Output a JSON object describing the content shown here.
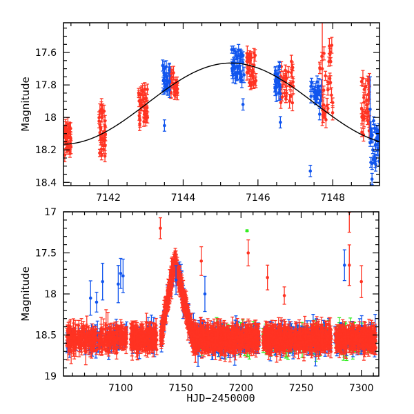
{
  "colors": {
    "red": "#ff3322",
    "blue": "#1155ee",
    "green": "#33ee22",
    "model": "#000000"
  },
  "chart_data": [
    {
      "type": "scatter",
      "panel": "top",
      "title": "",
      "xlabel": "",
      "ylabel": "Magnitude",
      "xlim": [
        7140.8,
        7149.25
      ],
      "ylim": [
        18.42,
        17.417
      ],
      "y_inverted": true,
      "x_ticks": [
        7142,
        7144,
        7146,
        7148
      ],
      "x_tick_labels": [
        "7142",
        "7144",
        "7146",
        "7148"
      ],
      "x_minor_step": 0.5,
      "y_ticks": [
        17.6,
        17.8,
        18,
        18.2,
        18.4
      ],
      "y_tick_labels": [
        "17.6",
        "17.8",
        "18",
        "18.2",
        "18.4"
      ],
      "y_minor_step": 0.05,
      "model_curve": {
        "type": "sinusoid",
        "mean_mag": 17.915,
        "amplitude": 0.25,
        "t_max_brightness": 7145.28,
        "period_days": 9.0
      },
      "series": [
        {
          "name": "red",
          "clusters": [
            {
              "t": [
                7140.8,
                7141.0
              ],
              "mag": [
                18.02,
                18.26
              ],
              "n": 30
            },
            {
              "t": [
                7141.75,
                7141.95
              ],
              "mag": [
                17.92,
                18.24
              ],
              "n": 30
            },
            {
              "t": [
                7142.75,
                7143.05
              ],
              "mag": [
                17.82,
                18.05
              ],
              "n": 30
            },
            {
              "t": [
                7143.65,
                7143.85
              ],
              "mag": [
                17.72,
                17.88
              ],
              "n": 25
            },
            {
              "t": [
                7145.7,
                7145.95
              ],
              "mag": [
                17.6,
                17.82
              ],
              "n": 28
            },
            {
              "t": [
                7146.6,
                7146.95
              ],
              "mag": [
                17.65,
                17.92
              ],
              "n": 28
            },
            {
              "t": [
                7147.65,
                7148.0
              ],
              "mag": [
                17.55,
                18.02
              ],
              "n": 28
            },
            {
              "t": [
                7148.75,
                7149.0
              ],
              "mag": [
                17.75,
                18.12
              ],
              "n": 30
            }
          ]
        },
        {
          "name": "blue",
          "clusters": [
            {
              "t": [
                7143.45,
                7143.65
              ],
              "mag": [
                17.68,
                17.86
              ],
              "n": 22
            },
            {
              "t": [
                7145.3,
                7145.65
              ],
              "mag": [
                17.58,
                17.78
              ],
              "n": 35
            },
            {
              "t": [
                7146.45,
                7146.6
              ],
              "mag": [
                17.68,
                17.86
              ],
              "n": 22
            },
            {
              "t": [
                7147.4,
                7147.7
              ],
              "mag": [
                17.78,
                17.92
              ],
              "n": 22
            },
            {
              "t": [
                7149.0,
                7149.25
              ],
              "mag": [
                18.0,
                18.3
              ],
              "n": 30
            }
          ],
          "outliers": [
            {
              "t": 7143.5,
              "mag": 18.05
            },
            {
              "t": 7145.6,
              "mag": 17.92
            },
            {
              "t": 7146.6,
              "mag": 18.03
            },
            {
              "t": 7147.4,
              "mag": 18.33
            },
            {
              "t": 7147.65,
              "mag": 17.98
            },
            {
              "t": 7149.05,
              "mag": 18.38
            }
          ]
        }
      ]
    },
    {
      "type": "scatter",
      "panel": "bottom",
      "title": "",
      "xlabel": "HJD−2450000",
      "ylabel": "Magnitude",
      "xlim": [
        7052.5,
        7314.5
      ],
      "ylim": [
        19,
        17
      ],
      "y_inverted": true,
      "x_ticks": [
        7100,
        7150,
        7200,
        7250,
        7300
      ],
      "x_tick_labels": [
        "7100",
        "7150",
        "7200",
        "7250",
        "7300"
      ],
      "x_minor_step": 10,
      "y_ticks": [
        17,
        17.5,
        18,
        18.5,
        19
      ],
      "y_tick_labels": [
        "17",
        "17.5",
        "18",
        "18.5",
        "19"
      ],
      "y_minor_step": 0.1,
      "baseline_mag": 18.55,
      "outburst": {
        "t_peak": 7145,
        "peak_mag": 17.6,
        "rise_start": 7133,
        "decay_end": 7160
      },
      "segments": [
        {
          "t": [
            7055,
            7105
          ],
          "red": 260,
          "blue": 70,
          "green": 0
        },
        {
          "t": [
            7108,
            7130
          ],
          "red": 200,
          "blue": 40,
          "green": 0
        },
        {
          "t": [
            7133,
            7160
          ],
          "red": 320,
          "blue": 60,
          "green": 0
        },
        {
          "t": [
            7160,
            7185
          ],
          "red": 260,
          "blue": 90,
          "green": 20
        },
        {
          "t": [
            7185,
            7215
          ],
          "red": 240,
          "blue": 120,
          "green": 50
        },
        {
          "t": [
            7218,
            7245
          ],
          "red": 220,
          "blue": 80,
          "green": 50
        },
        {
          "t": [
            7245,
            7275
          ],
          "red": 240,
          "blue": 80,
          "green": 50
        },
        {
          "t": [
            7278,
            7312
          ],
          "red": 240,
          "blue": 80,
          "green": 60
        }
      ],
      "bright_outliers": {
        "blue": [
          {
            "t": 7075,
            "mag": 18.05
          },
          {
            "t": 7080,
            "mag": 18.1
          },
          {
            "t": 7085,
            "mag": 17.85
          },
          {
            "t": 7098,
            "mag": 17.88
          },
          {
            "t": 7102,
            "mag": 17.78
          },
          {
            "t": 7100,
            "mag": 17.75
          },
          {
            "t": 7146,
            "mag": 17.83
          },
          {
            "t": 7170,
            "mag": 18.0
          },
          {
            "t": 7286,
            "mag": 17.65
          }
        ],
        "red": [
          {
            "t": 7133,
            "mag": 17.2
          },
          {
            "t": 7167,
            "mag": 17.6
          },
          {
            "t": 7206,
            "mag": 17.5
          },
          {
            "t": 7222,
            "mag": 17.8
          },
          {
            "t": 7290,
            "mag": 17.0
          },
          {
            "t": 7290,
            "mag": 17.65
          },
          {
            "t": 7300,
            "mag": 17.85
          },
          {
            "t": 7236,
            "mag": 18.02
          }
        ],
        "green": [
          {
            "t": 7205,
            "mag": 17.23
          }
        ]
      }
    }
  ]
}
